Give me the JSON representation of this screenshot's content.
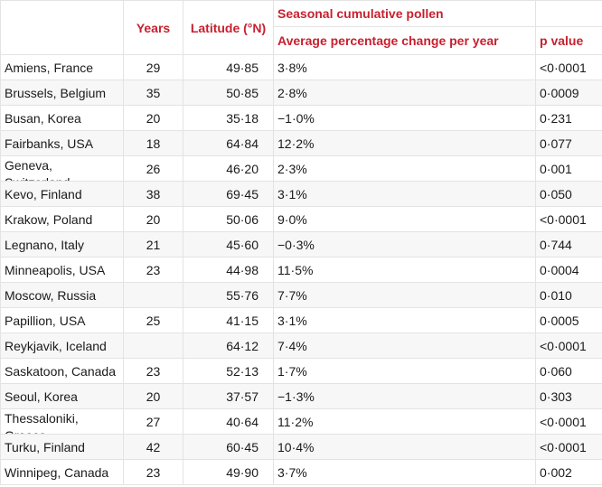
{
  "table": {
    "headers": {
      "years": "Years",
      "latitude": "Latitude (°N)",
      "group": "Seasonal cumulative pollen",
      "pct_change": "Average percentage change per year",
      "p_value": "p value"
    },
    "rows": [
      {
        "city": "Amiens, France",
        "years": "29",
        "latitude": "49·85",
        "pct_change": "3·8%",
        "p_value": "<0·0001"
      },
      {
        "city": "Brussels, Belgium",
        "years": "35",
        "latitude": "50·85",
        "pct_change": "2·8%",
        "p_value": "0·0009"
      },
      {
        "city": "Busan, Korea",
        "years": "20",
        "latitude": "35·18",
        "pct_change": "−1·0%",
        "p_value": "0·231"
      },
      {
        "city": "Fairbanks, USA",
        "years": "18",
        "latitude": "64·84",
        "pct_change": "12·2%",
        "p_value": "0·077"
      },
      {
        "city": "Geneva, Switzerland",
        "years": "26",
        "latitude": "46·20",
        "pct_change": "2·3%",
        "p_value": "0·001"
      },
      {
        "city": "Kevo, Finland",
        "years": "38",
        "latitude": "69·45",
        "pct_change": "3·1%",
        "p_value": "0·050"
      },
      {
        "city": "Krakow, Poland",
        "years": "20",
        "latitude": "50·06",
        "pct_change": "9·0%",
        "p_value": "<0·0001"
      },
      {
        "city": "Legnano, Italy",
        "years": "21",
        "latitude": "45·60",
        "pct_change": "−0·3%",
        "p_value": "0·744"
      },
      {
        "city": "Minneapolis, USA",
        "years": "23",
        "latitude": "44·98",
        "pct_change": "11·5%",
        "p_value": "0·0004"
      },
      {
        "city": "Moscow, Russia",
        "years": "",
        "latitude": "55·76",
        "pct_change": "7·7%",
        "p_value": "0·010"
      },
      {
        "city": "Papillion, USA",
        "years": "25",
        "latitude": "41·15",
        "pct_change": "3·1%",
        "p_value": "0·0005"
      },
      {
        "city": "Reykjavik, Iceland",
        "years": "",
        "latitude": "64·12",
        "pct_change": "7·4%",
        "p_value": "<0·0001"
      },
      {
        "city": "Saskatoon, Canada",
        "years": "23",
        "latitude": "52·13",
        "pct_change": "1·7%",
        "p_value": "0·060"
      },
      {
        "city": "Seoul, Korea",
        "years": "20",
        "latitude": "37·57",
        "pct_change": "−1·3%",
        "p_value": "0·303"
      },
      {
        "city": "Thessaloniki, Greece",
        "years": "27",
        "latitude": "40·64",
        "pct_change": "11·2%",
        "p_value": "<0·0001"
      },
      {
        "city": "Turku, Finland",
        "years": "42",
        "latitude": "60·45",
        "pct_change": "10·4%",
        "p_value": "<0·0001"
      },
      {
        "city": "Winnipeg, Canada",
        "years": "23",
        "latitude": "49·90",
        "pct_change": "3·7%",
        "p_value": "0·002"
      }
    ]
  }
}
